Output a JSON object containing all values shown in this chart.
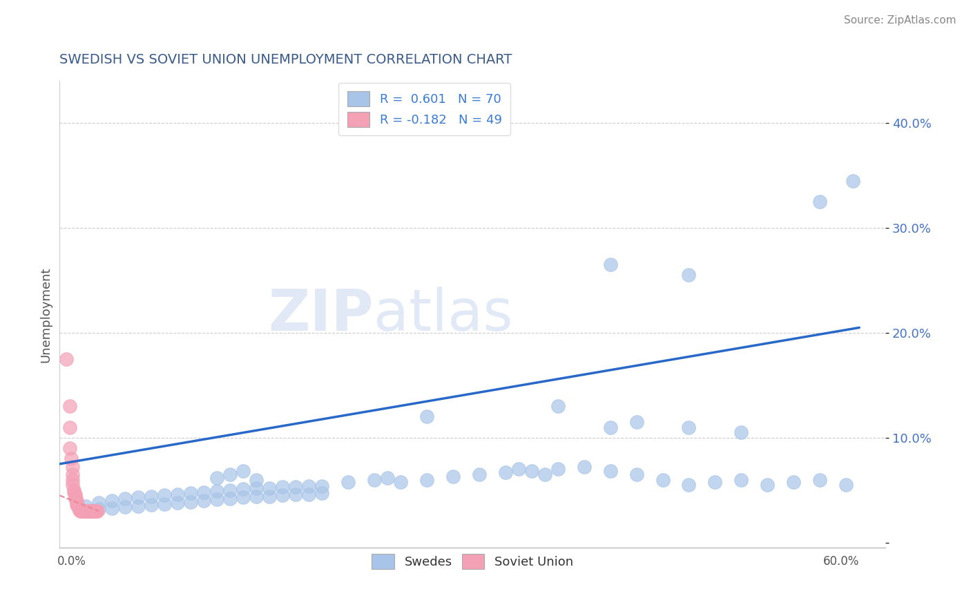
{
  "title": "SWEDISH VS SOVIET UNION UNEMPLOYMENT CORRELATION CHART",
  "source": "Source: ZipAtlas.com",
  "ylabel": "Unemployment",
  "yticks": [
    0.0,
    0.1,
    0.2,
    0.3,
    0.4
  ],
  "ytick_labels": [
    "",
    "10.0%",
    "20.0%",
    "30.0%",
    "40.0%"
  ],
  "xlim": [
    0.0,
    0.63
  ],
  "ylim": [
    -0.005,
    0.44
  ],
  "title_color": "#3a5a8a",
  "source_color": "#888888",
  "legend_color": "#3a7bd5",
  "swedes_color": "#a8c4e8",
  "soviet_color": "#f4a0b5",
  "trend_blue": "#2868c8",
  "trend_pink": "#e8889a",
  "watermark_zip": "ZIP",
  "watermark_atlas": "atlas",
  "swedes_scatter": [
    [
      0.02,
      0.035
    ],
    [
      0.03,
      0.038
    ],
    [
      0.04,
      0.04
    ],
    [
      0.05,
      0.042
    ],
    [
      0.06,
      0.043
    ],
    [
      0.07,
      0.044
    ],
    [
      0.08,
      0.045
    ],
    [
      0.09,
      0.046
    ],
    [
      0.1,
      0.047
    ],
    [
      0.11,
      0.048
    ],
    [
      0.12,
      0.049
    ],
    [
      0.13,
      0.05
    ],
    [
      0.14,
      0.051
    ],
    [
      0.15,
      0.052
    ],
    [
      0.16,
      0.052
    ],
    [
      0.17,
      0.053
    ],
    [
      0.18,
      0.053
    ],
    [
      0.19,
      0.054
    ],
    [
      0.2,
      0.054
    ],
    [
      0.02,
      0.03
    ],
    [
      0.03,
      0.032
    ],
    [
      0.04,
      0.033
    ],
    [
      0.05,
      0.034
    ],
    [
      0.06,
      0.035
    ],
    [
      0.07,
      0.036
    ],
    [
      0.08,
      0.037
    ],
    [
      0.09,
      0.038
    ],
    [
      0.1,
      0.039
    ],
    [
      0.11,
      0.04
    ],
    [
      0.12,
      0.041
    ],
    [
      0.13,
      0.042
    ],
    [
      0.14,
      0.043
    ],
    [
      0.15,
      0.044
    ],
    [
      0.16,
      0.044
    ],
    [
      0.17,
      0.045
    ],
    [
      0.18,
      0.046
    ],
    [
      0.19,
      0.046
    ],
    [
      0.2,
      0.047
    ],
    [
      0.12,
      0.062
    ],
    [
      0.13,
      0.065
    ],
    [
      0.14,
      0.068
    ],
    [
      0.15,
      0.06
    ],
    [
      0.22,
      0.058
    ],
    [
      0.24,
      0.06
    ],
    [
      0.25,
      0.062
    ],
    [
      0.26,
      0.058
    ],
    [
      0.28,
      0.06
    ],
    [
      0.3,
      0.063
    ],
    [
      0.32,
      0.065
    ],
    [
      0.34,
      0.067
    ],
    [
      0.35,
      0.07
    ],
    [
      0.36,
      0.068
    ],
    [
      0.37,
      0.065
    ],
    [
      0.38,
      0.07
    ],
    [
      0.4,
      0.072
    ],
    [
      0.42,
      0.068
    ],
    [
      0.44,
      0.065
    ],
    [
      0.46,
      0.06
    ],
    [
      0.48,
      0.055
    ],
    [
      0.5,
      0.058
    ],
    [
      0.52,
      0.06
    ],
    [
      0.54,
      0.055
    ],
    [
      0.56,
      0.058
    ],
    [
      0.58,
      0.06
    ],
    [
      0.6,
      0.055
    ],
    [
      0.28,
      0.12
    ],
    [
      0.38,
      0.13
    ],
    [
      0.42,
      0.11
    ],
    [
      0.44,
      0.115
    ],
    [
      0.48,
      0.11
    ],
    [
      0.52,
      0.105
    ],
    [
      0.48,
      0.255
    ],
    [
      0.42,
      0.265
    ],
    [
      0.58,
      0.325
    ],
    [
      0.605,
      0.345
    ]
  ],
  "soviet_scatter": [
    [
      0.005,
      0.175
    ],
    [
      0.008,
      0.13
    ],
    [
      0.008,
      0.11
    ],
    [
      0.008,
      0.09
    ],
    [
      0.009,
      0.08
    ],
    [
      0.01,
      0.072
    ],
    [
      0.01,
      0.065
    ],
    [
      0.01,
      0.06
    ],
    [
      0.01,
      0.055
    ],
    [
      0.011,
      0.05
    ],
    [
      0.011,
      0.048
    ],
    [
      0.012,
      0.046
    ],
    [
      0.012,
      0.044
    ],
    [
      0.012,
      0.042
    ],
    [
      0.013,
      0.04
    ],
    [
      0.013,
      0.038
    ],
    [
      0.013,
      0.036
    ],
    [
      0.014,
      0.035
    ],
    [
      0.014,
      0.034
    ],
    [
      0.015,
      0.033
    ],
    [
      0.015,
      0.032
    ],
    [
      0.015,
      0.031
    ],
    [
      0.016,
      0.03
    ],
    [
      0.016,
      0.03
    ],
    [
      0.017,
      0.03
    ],
    [
      0.017,
      0.03
    ],
    [
      0.018,
      0.03
    ],
    [
      0.018,
      0.03
    ],
    [
      0.019,
      0.03
    ],
    [
      0.019,
      0.03
    ],
    [
      0.02,
      0.03
    ],
    [
      0.02,
      0.03
    ],
    [
      0.021,
      0.03
    ],
    [
      0.021,
      0.03
    ],
    [
      0.022,
      0.03
    ],
    [
      0.022,
      0.03
    ],
    [
      0.023,
      0.03
    ],
    [
      0.023,
      0.03
    ],
    [
      0.024,
      0.03
    ],
    [
      0.024,
      0.03
    ],
    [
      0.025,
      0.03
    ],
    [
      0.025,
      0.03
    ],
    [
      0.026,
      0.03
    ],
    [
      0.026,
      0.03
    ],
    [
      0.027,
      0.03
    ],
    [
      0.027,
      0.03
    ],
    [
      0.028,
      0.03
    ],
    [
      0.028,
      0.03
    ],
    [
      0.029,
      0.03
    ]
  ],
  "blue_line_x": [
    0.0,
    0.61
  ],
  "blue_line_y": [
    0.075,
    0.205
  ],
  "pink_line_x": [
    0.0,
    0.03
  ],
  "pink_line_y": [
    0.045,
    0.03
  ]
}
